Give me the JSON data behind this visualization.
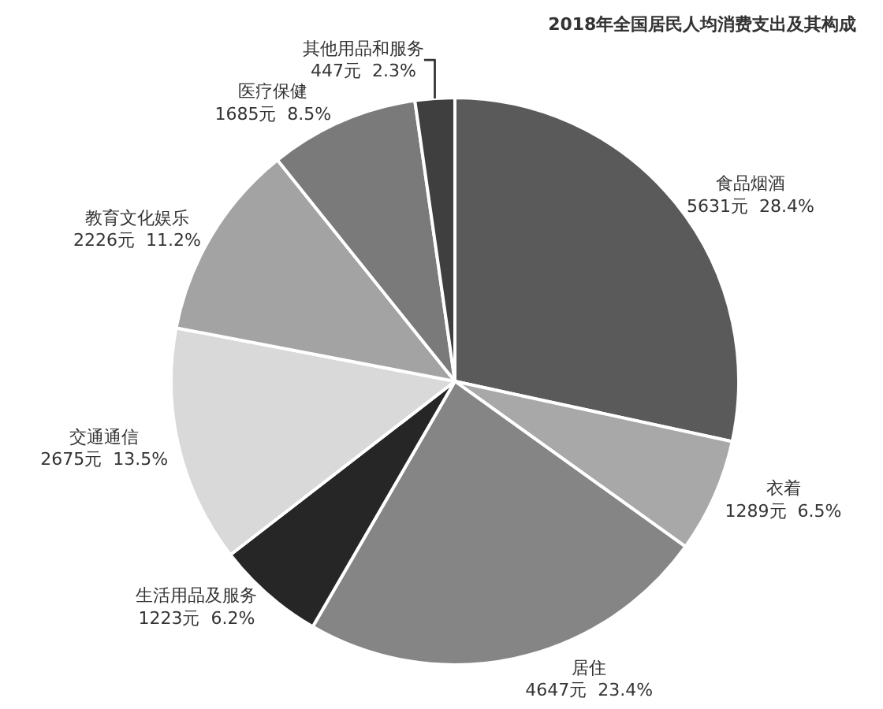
{
  "chart_data": {
    "type": "pie",
    "title": "2018年全国居民人均消费支出及其构成",
    "categories": [
      "食品烟酒",
      "衣着",
      "居住",
      "生活用品及服务",
      "交通通信",
      "教育文化娱乐",
      "医疗保健",
      "其他用品和服务"
    ],
    "values": [
      5631,
      1289,
      4647,
      1223,
      2675,
      2226,
      1685,
      447
    ],
    "value_labels": [
      "5631元  28.4%",
      "1289元  6.5%",
      "4647元  23.4%",
      "1223元  6.2%",
      "2675元  13.5%",
      "2226元  11.2%",
      "1685元  8.5%",
      "447元  2.3%"
    ],
    "colors": [
      "#5a5a5a",
      "#a8a8a8",
      "#858585",
      "#262626",
      "#d9d9d9",
      "#a3a3a3",
      "#7a7a7a",
      "#3f3f3f"
    ],
    "legend": false
  }
}
